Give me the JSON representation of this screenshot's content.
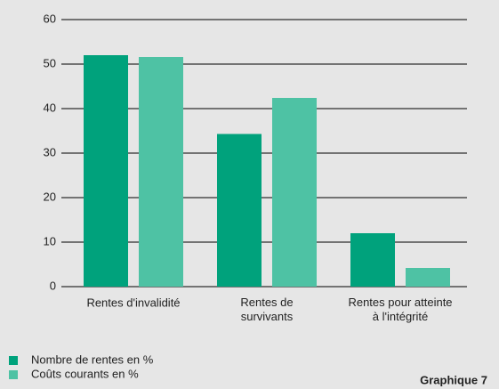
{
  "chart_data": {
    "type": "bar",
    "categories": [
      "Rentes d'invalidité",
      "Rentes de\nsurvivants",
      "Rentes pour atteinte\nà l'intégrité"
    ],
    "series": [
      {
        "name": "Nombre de rentes en %",
        "color": "#00a27c",
        "values": [
          52,
          34.3,
          12
        ]
      },
      {
        "name": "Coûts courants en %",
        "color": "#4ec2a4",
        "values": [
          51.6,
          42.4,
          4.2
        ]
      }
    ],
    "ylim": [
      0,
      60
    ],
    "yticks": [
      0,
      10,
      20,
      30,
      40,
      50,
      60
    ],
    "grid": true,
    "footer": "Graphique 7"
  }
}
